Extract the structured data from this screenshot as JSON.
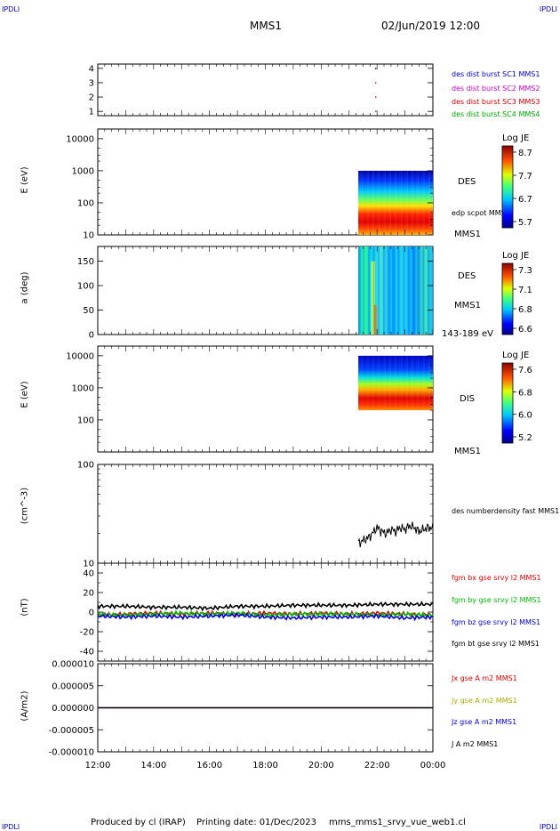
{
  "corners": {
    "top_left": "IPDLI",
    "top_right": "IPDLI",
    "bottom_left": "IPDLI",
    "bottom_right": "IPDLI"
  },
  "header": {
    "spacecraft": "MMS1",
    "datetime": "02/Jun/2019 12:00"
  },
  "footer": {
    "producer": "Produced by cl (IRAP)",
    "printing_date": "Printing date: 01/Dec/2023",
    "filename": "mms_mms1_srvy_vue_web1.cl"
  },
  "colors": {
    "mms1": "#0000cc",
    "mms2": "#cc00cc",
    "mms3": "#cc0000",
    "mms4": "#00aa00",
    "bx": "#dd0000",
    "by": "#00bb00",
    "bz": "#0000dd",
    "bt": "#000000"
  },
  "chart_data": [
    {
      "type": "scatter",
      "panel": "burst",
      "ylim": [
        0.7,
        4.3
      ],
      "yticks": [
        1,
        2,
        3,
        4
      ],
      "x_hours": [
        21.95,
        21.95,
        21.95,
        21.95
      ],
      "values": [
        4,
        3,
        2,
        1
      ],
      "legend": [
        {
          "label": "des dist burst SC1 MMS1",
          "color": "#0000cc"
        },
        {
          "label": "des dist burst SC2 MMS2",
          "color": "#cc00cc"
        },
        {
          "label": "des dist burst SC3 MMS3",
          "color": "#cc0000"
        },
        {
          "label": "des dist burst SC4 MMS4",
          "color": "#00aa00"
        }
      ]
    },
    {
      "type": "heatmap",
      "panel": "des_energy",
      "ylabel": "E (eV)",
      "yscale": "log",
      "ylim": [
        10,
        20000
      ],
      "yticks": [
        10,
        100,
        1000,
        10000
      ],
      "data_start_hour": 21.33,
      "species": "DES",
      "extra_label": "edp scpot MMS1",
      "sat_label": "MMS1",
      "colorbar": {
        "title": "Log JE",
        "ticks": [
          "8.7",
          "7.7",
          "6.7",
          "5.7"
        ]
      }
    },
    {
      "type": "heatmap",
      "panel": "des_pitch",
      "ylabel": "a (deg)",
      "ylim": [
        0,
        180
      ],
      "yticks": [
        0,
        50,
        100,
        150
      ],
      "data_start_hour": 21.33,
      "species": "DES",
      "sat_label": "MMS1",
      "energy_label": "143-189 eV",
      "colorbar": {
        "title": "Log JE",
        "ticks": [
          "7.3",
          "7.1",
          "6.8",
          "6.6"
        ]
      }
    },
    {
      "type": "heatmap",
      "panel": "dis_energy",
      "ylabel": "E (eV)",
      "yscale": "log",
      "ylim": [
        10,
        20000
      ],
      "yticks": [
        100,
        1000,
        10000
      ],
      "data_start_hour": 21.33,
      "species": "DIS",
      "sat_label": "MMS1",
      "colorbar": {
        "title": "Log JE",
        "ticks": [
          "7.6",
          "6.8",
          "6.0",
          "5.2"
        ]
      }
    },
    {
      "type": "line",
      "panel": "density",
      "ylabel": "(cm^-3)",
      "yscale": "log",
      "ylim": [
        10,
        100
      ],
      "yticks": [
        10,
        100
      ],
      "series": [
        {
          "name": "des numberdensity fast MMS1",
          "color": "#000000",
          "x": [
            21.33,
            21.5,
            21.67,
            21.83,
            22.0,
            22.17,
            22.33,
            22.5,
            22.67,
            22.83,
            23.0,
            23.17,
            23.33,
            23.5,
            23.67,
            23.83,
            24.0
          ],
          "values": [
            16,
            17,
            18,
            20,
            23,
            21,
            20,
            22,
            21,
            23,
            22,
            24,
            23,
            21,
            22,
            23,
            23
          ]
        }
      ]
    },
    {
      "type": "line",
      "panel": "fgm",
      "ylabel": "(nT)",
      "ylim": [
        -50,
        50
      ],
      "yticks": [
        -40,
        -20,
        0,
        20,
        40
      ],
      "x_hours": [
        12,
        13,
        14,
        15,
        16,
        17,
        18,
        19,
        20,
        21,
        22,
        23,
        24
      ],
      "series": [
        {
          "name": "fgm bx gse srvy l2 MMS1",
          "color": "#dd0000",
          "values": [
            -3,
            -2,
            -1,
            -2,
            -1,
            -2,
            -1,
            -2,
            -1,
            -2,
            -1,
            -2,
            -3
          ]
        },
        {
          "name": "fgm by gse srvy l2 MMS1",
          "color": "#00bb00",
          "values": [
            -2,
            -3,
            -2,
            -1,
            -2,
            -1,
            -3,
            -2,
            -2,
            -2,
            -3,
            -2,
            -3
          ]
        },
        {
          "name": "fgm bz gse srvy l2 MMS1",
          "color": "#0000dd",
          "values": [
            -4,
            -5,
            -4,
            -5,
            -4,
            -3,
            -5,
            -6,
            -5,
            -5,
            -4,
            -6,
            -5
          ]
        },
        {
          "name": "fgm bt gse srvy l2 MMS1",
          "color": "#000000",
          "values": [
            6,
            6,
            5,
            5,
            4,
            6,
            6,
            7,
            7,
            7,
            8,
            8,
            8
          ]
        }
      ]
    },
    {
      "type": "line",
      "panel": "current",
      "ylabel": "(A/m2)",
      "ylim": [
        -1e-05,
        1e-05
      ],
      "yticks": [
        "-0.000010",
        "-0.000005",
        "0.000000",
        "0.000005",
        "0.000010"
      ],
      "series": [
        {
          "name": "Jx gse A m2 MMS1",
          "color": "#dd0000",
          "values": [
            0,
            0
          ]
        },
        {
          "name": "Jy gse A m2 MMS1",
          "color": "#aaaa00",
          "values": [
            0,
            0
          ]
        },
        {
          "name": "Jz gse A m2 MMS1",
          "color": "#0000dd",
          "values": [
            0,
            0
          ]
        },
        {
          "name": "J A m2 MMS1",
          "color": "#000000",
          "values": [
            0,
            0
          ]
        }
      ],
      "x_hours": [
        12,
        24
      ],
      "xticks": [
        "12:00",
        "14:00",
        "16:00",
        "18:00",
        "20:00",
        "22:00",
        "00:00"
      ]
    }
  ]
}
